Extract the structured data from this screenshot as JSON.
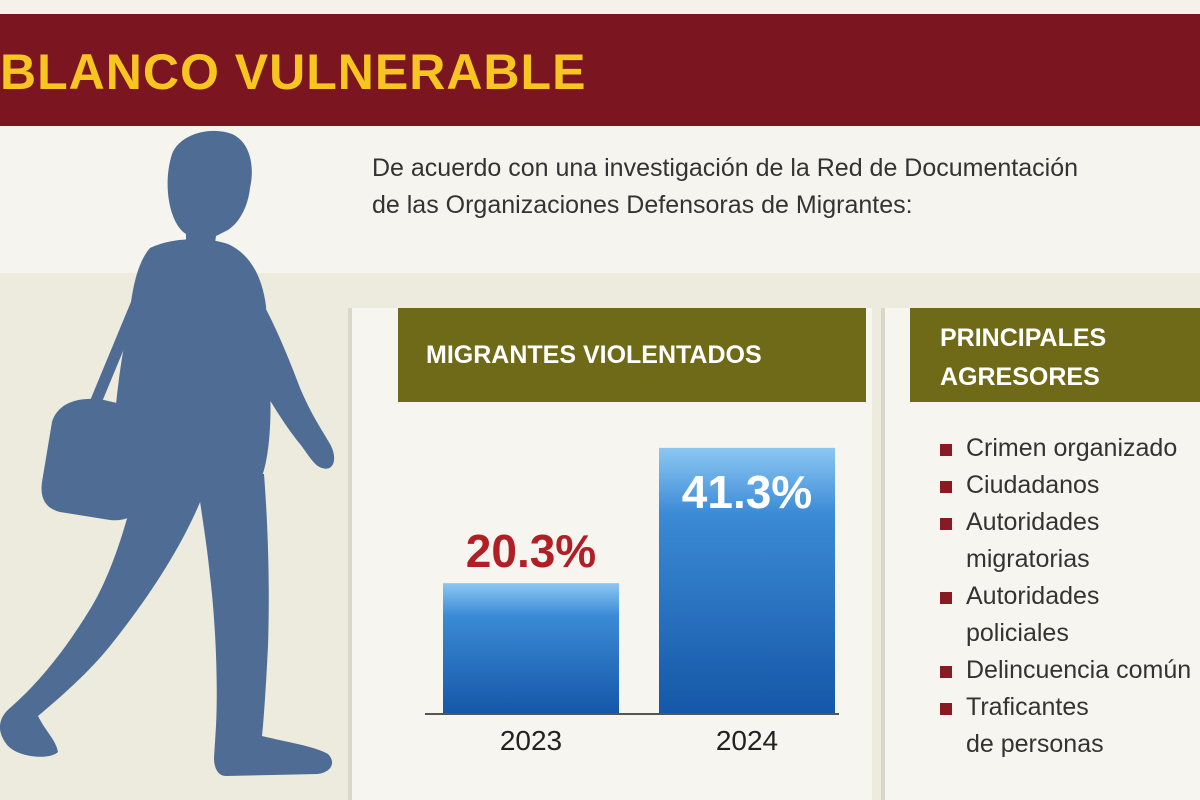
{
  "header": {
    "title": "BLANCO VULNERABLE"
  },
  "intro": {
    "line1": "De acuerdo con una investigación de la Red de Documentación",
    "line2": "de las Organizaciones Defensoras de Migrantes:"
  },
  "colors": {
    "title_bar": "#7b1620",
    "title_text": "#f6c520",
    "panel_header": "#6e6a17",
    "bar_fill": "#1f6bbf",
    "value_2023": "#b21e25",
    "value_2024": "#ffffff",
    "bullet": "#8a1a22",
    "silhouette": "#4f6d94"
  },
  "chart_data": {
    "type": "bar",
    "title": "MIGRANTES VIOLENTADOS",
    "categories": [
      "2023",
      "2024"
    ],
    "values": [
      20.3,
      41.3
    ],
    "value_labels": [
      "20.3%",
      "41.3%"
    ],
    "ylim": [
      0,
      45
    ],
    "grid": false
  },
  "aggressors": {
    "title_line1": "PRINCIPALES",
    "title_line2": "AGRESORES",
    "items": [
      "Crimen organizado",
      "Ciudadanos",
      "Autoridades\nmigratorias",
      "Autoridades\npoliciales",
      "Delincuencia común",
      "Traficantes\nde personas"
    ]
  },
  "icons": {
    "figure": "walking-migrant-silhouette-icon",
    "bullet": "square-bullet-icon"
  }
}
